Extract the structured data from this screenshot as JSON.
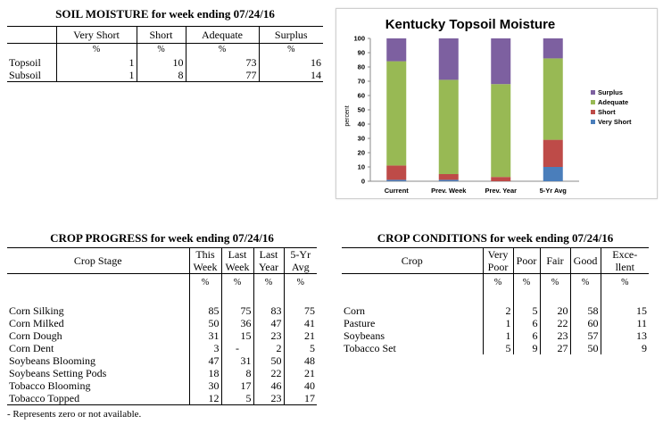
{
  "soil": {
    "title": "SOIL MOISTURE for week ending 07/24/16",
    "headers": [
      "Very Short",
      "Short",
      "Adequate",
      "Surplus"
    ],
    "units": [
      "%",
      "%",
      "%",
      "%"
    ],
    "rows": [
      {
        "label": "Topsoil",
        "values": [
          "1",
          "10",
          "73",
          "16"
        ]
      },
      {
        "label": "Subsoil",
        "values": [
          "1",
          "8",
          "77",
          "14"
        ]
      }
    ]
  },
  "chart_data": {
    "type": "bar",
    "stacked": true,
    "title": "Kentucky Topsoil Moisture",
    "xlabel": "",
    "ylabel": "percent",
    "ylim": [
      0,
      100
    ],
    "yticks": [
      0,
      10,
      20,
      30,
      40,
      50,
      60,
      70,
      80,
      90,
      100
    ],
    "categories": [
      "Current",
      "Prev. Week",
      "Prev. Year",
      "5-Yr Avg"
    ],
    "series": [
      {
        "name": "Very Short",
        "color": "#4a7ebb",
        "values": [
          1,
          1,
          0,
          10
        ]
      },
      {
        "name": "Short",
        "color": "#be4b48",
        "values": [
          10,
          4,
          3,
          19
        ]
      },
      {
        "name": "Adequate",
        "color": "#98b954",
        "values": [
          73,
          66,
          65,
          57
        ]
      },
      {
        "name": "Surplus",
        "color": "#7d60a0",
        "values": [
          16,
          29,
          32,
          14
        ]
      }
    ],
    "legend_position": "right",
    "legend_order": [
      "Surplus",
      "Adequate",
      "Short",
      "Very Short"
    ],
    "grid": false
  },
  "progress": {
    "title": "CROP PROGRESS for week ending 07/24/16",
    "stage_header": "Crop Stage",
    "headers": [
      [
        "This",
        "Week"
      ],
      [
        "Last",
        "Week"
      ],
      [
        "Last",
        "Year"
      ],
      [
        "5-Yr",
        "Avg"
      ]
    ],
    "units": [
      "%",
      "%",
      "%",
      "%"
    ],
    "rows": [
      {
        "label": "Corn Silking",
        "values": [
          "85",
          "75",
          "83",
          "75"
        ]
      },
      {
        "label": "Corn Milked",
        "values": [
          "50",
          "36",
          "47",
          "41"
        ]
      },
      {
        "label": "Corn Dough",
        "values": [
          "31",
          "15",
          "23",
          "21"
        ]
      },
      {
        "label": "Corn Dent",
        "values": [
          "3",
          "-",
          "2",
          "5"
        ]
      },
      {
        "label": "Soybeans Blooming",
        "values": [
          "47",
          "31",
          "50",
          "48"
        ]
      },
      {
        "label": "Soybeans Setting Pods",
        "values": [
          "18",
          "8",
          "22",
          "21"
        ]
      },
      {
        "label": "Tobacco Blooming",
        "values": [
          "30",
          "17",
          "46",
          "40"
        ]
      },
      {
        "label": "Tobacco Topped",
        "values": [
          "12",
          "5",
          "23",
          "17"
        ]
      }
    ],
    "footnote": "- Represents zero or not available."
  },
  "conditions": {
    "title": "CROP CONDITIONS for week ending 07/24/16",
    "crop_header": "Crop",
    "headers": [
      [
        "Very",
        "Poor"
      ],
      [
        "Poor"
      ],
      [
        "Fair"
      ],
      [
        "Good"
      ],
      [
        "Exce-",
        "llent"
      ]
    ],
    "units": [
      "%",
      "%",
      "%",
      "%",
      "%"
    ],
    "rows": [
      {
        "label": "Corn",
        "values": [
          "2",
          "5",
          "20",
          "58",
          "15"
        ]
      },
      {
        "label": "Pasture",
        "values": [
          "1",
          "6",
          "22",
          "60",
          "11"
        ]
      },
      {
        "label": "Soybeans",
        "values": [
          "1",
          "6",
          "23",
          "57",
          "13"
        ]
      },
      {
        "label": "Tobacco Set",
        "values": [
          "5",
          "9",
          "27",
          "50",
          "9"
        ]
      }
    ]
  }
}
